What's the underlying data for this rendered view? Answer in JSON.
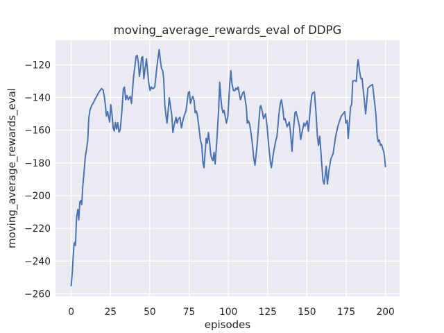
{
  "chart_data": {
    "type": "line",
    "title": "moving_average_rewards_eval of DDPG",
    "xlabel": "episodes",
    "ylabel": "moving_average_rewards_eval",
    "x_ticks": [
      0,
      25,
      50,
      75,
      100,
      125,
      150,
      175,
      200
    ],
    "y_ticks": [
      -120,
      -140,
      -160,
      -180,
      -200,
      -220,
      -240,
      -260
    ],
    "xlim": [
      -10,
      209
    ],
    "ylim": [
      -261.5,
      -105
    ],
    "grid": true,
    "legend": false,
    "background": {
      "figure": "#ffffff",
      "axes": "#eaeaf2"
    },
    "colors": {
      "grid": "#ffffff",
      "line": "#4c72b0",
      "text": "#262626"
    },
    "series": [
      {
        "name": "moving_average_rewards_eval",
        "points": [
          [
            0,
            -255
          ],
          [
            0.7,
            -247
          ],
          [
            1.3,
            -237
          ],
          [
            1.8,
            -229.5
          ],
          [
            2.3,
            -228.5
          ],
          [
            2.7,
            -230.5
          ],
          [
            3.4,
            -213.5
          ],
          [
            4.2,
            -208.5
          ],
          [
            4.8,
            -214.9
          ],
          [
            5.5,
            -204
          ],
          [
            6.1,
            -203
          ],
          [
            6.7,
            -205.5
          ],
          [
            7.4,
            -194
          ],
          [
            8.2,
            -185.5
          ],
          [
            9,
            -176
          ],
          [
            9.8,
            -171.5
          ],
          [
            10.5,
            -166.5
          ],
          [
            11.2,
            -152.5
          ],
          [
            12,
            -147.5
          ],
          [
            13,
            -145
          ],
          [
            14.1,
            -143.2
          ],
          [
            15.1,
            -141.2
          ],
          [
            16.1,
            -139.5
          ],
          [
            17.1,
            -137.6
          ],
          [
            18.1,
            -136.1
          ],
          [
            19.3,
            -134.5
          ],
          [
            20.3,
            -135.4
          ],
          [
            21.1,
            -139.5
          ],
          [
            21.7,
            -144.3
          ],
          [
            22.4,
            -151.4
          ],
          [
            23.1,
            -148.6
          ],
          [
            23.8,
            -151.8
          ],
          [
            24.5,
            -155
          ],
          [
            25.2,
            -144.3
          ],
          [
            26,
            -150.5
          ],
          [
            26.7,
            -158.5
          ],
          [
            27.4,
            -160.5
          ],
          [
            28.1,
            -155.3
          ],
          [
            28.9,
            -159.3
          ],
          [
            29.6,
            -155.4
          ],
          [
            30.4,
            -161.2
          ],
          [
            31.2,
            -159.8
          ],
          [
            32.2,
            -149
          ],
          [
            33.2,
            -134.8
          ],
          [
            33.9,
            -133.6
          ],
          [
            34.7,
            -141.4
          ],
          [
            35.5,
            -138.8
          ],
          [
            36.3,
            -141.4
          ],
          [
            37.5,
            -139.3
          ],
          [
            38.4,
            -143.6
          ],
          [
            39.7,
            -127.1
          ],
          [
            40.6,
            -120.4
          ],
          [
            41.3,
            -114.8
          ],
          [
            42,
            -114.3
          ],
          [
            42.7,
            -118.6
          ],
          [
            43.4,
            -127.1
          ],
          [
            44.2,
            -121.5
          ],
          [
            44.8,
            -115.7
          ],
          [
            45.5,
            -115.1
          ],
          [
            46.2,
            -128.6
          ],
          [
            47.2,
            -121.3
          ],
          [
            47.9,
            -116.4
          ],
          [
            48.7,
            -124.5
          ],
          [
            49.4,
            -131.4
          ],
          [
            50.2,
            -135.7
          ],
          [
            51,
            -133.6
          ],
          [
            51.8,
            -134.6
          ],
          [
            52.5,
            -134.3
          ],
          [
            53.2,
            -133.6
          ],
          [
            54.5,
            -121.4
          ],
          [
            55.2,
            -116.2
          ],
          [
            56,
            -110.7
          ],
          [
            56.7,
            -117.1
          ],
          [
            57.4,
            -122.1
          ],
          [
            58.2,
            -123.6
          ],
          [
            58.9,
            -128.6
          ],
          [
            59.6,
            -145
          ],
          [
            60.3,
            -150.7
          ],
          [
            61,
            -155.7
          ],
          [
            62.4,
            -140.2
          ],
          [
            63.2,
            -145.5
          ],
          [
            64,
            -150.7
          ],
          [
            64.7,
            -161.4
          ],
          [
            65.5,
            -157.1
          ],
          [
            66.7,
            -152.1
          ],
          [
            67.4,
            -155.7
          ],
          [
            68.2,
            -153.2
          ],
          [
            69.2,
            -152.1
          ],
          [
            70.2,
            -158.6
          ],
          [
            70.9,
            -155
          ],
          [
            71.6,
            -152.1
          ],
          [
            73.1,
            -148
          ],
          [
            74.5,
            -137.1
          ],
          [
            75.2,
            -136.4
          ],
          [
            75.9,
            -143.6
          ],
          [
            76.7,
            -141
          ],
          [
            77.4,
            -139.3
          ],
          [
            78.2,
            -142
          ],
          [
            78.9,
            -149.3
          ],
          [
            79.6,
            -148.2
          ],
          [
            80.3,
            -150.7
          ],
          [
            81.3,
            -158.5
          ],
          [
            82.3,
            -166.4
          ],
          [
            83.1,
            -169.3
          ],
          [
            83.8,
            -179.3
          ],
          [
            84.5,
            -182.9
          ],
          [
            85.9,
            -165
          ],
          [
            86.6,
            -167.9
          ],
          [
            87.3,
            -161.4
          ],
          [
            88.2,
            -168.5
          ],
          [
            88.8,
            -175
          ],
          [
            89.5,
            -177.5
          ],
          [
            90.2,
            -178.6
          ],
          [
            90.9,
            -173.6
          ],
          [
            91.6,
            -180.7
          ],
          [
            92.7,
            -166
          ],
          [
            93.8,
            -148
          ],
          [
            94.5,
            -130.7
          ],
          [
            95.2,
            -140.2
          ],
          [
            95.9,
            -146.4
          ],
          [
            96.6,
            -149.3
          ],
          [
            97.3,
            -147.9
          ],
          [
            98.1,
            -152.1
          ],
          [
            98.8,
            -155.7
          ],
          [
            99.7,
            -151.4
          ],
          [
            100.9,
            -131.4
          ],
          [
            101.6,
            -123.6
          ],
          [
            102.3,
            -131.4
          ],
          [
            103.2,
            -135.7
          ],
          [
            104.2,
            -135.8
          ],
          [
            104.8,
            -134.3
          ],
          [
            105.5,
            -135.1
          ],
          [
            106.2,
            -133.6
          ],
          [
            107.7,
            -141.4
          ],
          [
            109.2,
            -137.1
          ],
          [
            109.9,
            -136.4
          ],
          [
            111.4,
            -145.7
          ],
          [
            112.1,
            -155.7
          ],
          [
            112.8,
            -154.3
          ],
          [
            113.6,
            -156.4
          ],
          [
            115,
            -165.7
          ],
          [
            116.2,
            -177.1
          ],
          [
            117,
            -181.4
          ],
          [
            118.2,
            -170
          ],
          [
            119.2,
            -158
          ],
          [
            120.2,
            -145.7
          ],
          [
            120.7,
            -145
          ],
          [
            121.7,
            -149
          ],
          [
            122.4,
            -152.9
          ],
          [
            123.7,
            -150
          ],
          [
            124.7,
            -158
          ],
          [
            125.8,
            -170.7
          ],
          [
            126.7,
            -179
          ],
          [
            127.4,
            -182.9
          ],
          [
            128.7,
            -174
          ],
          [
            130.2,
            -166.5
          ],
          [
            131,
            -163.6
          ],
          [
            132.2,
            -150
          ],
          [
            133.1,
            -143.6
          ],
          [
            133.8,
            -141.4
          ],
          [
            134.7,
            -147
          ],
          [
            135.4,
            -153.6
          ],
          [
            136.1,
            -152.9
          ],
          [
            137.4,
            -157.9
          ],
          [
            138.8,
            -155
          ],
          [
            139.5,
            -160.7
          ],
          [
            140.5,
            -172.9
          ],
          [
            141.4,
            -160
          ],
          [
            142.4,
            -149.3
          ],
          [
            143.1,
            -148.6
          ],
          [
            144.2,
            -153
          ],
          [
            145.3,
            -157.9
          ],
          [
            146,
            -165.7
          ],
          [
            147.2,
            -160
          ],
          [
            148.1,
            -155.7
          ],
          [
            148.8,
            -157.5
          ],
          [
            150.2,
            -154.3
          ],
          [
            151,
            -160.7
          ],
          [
            152.2,
            -146
          ],
          [
            153.1,
            -138.6
          ],
          [
            153.8,
            -137.1
          ],
          [
            154.8,
            -136.6
          ],
          [
            155.7,
            -148
          ],
          [
            156.7,
            -163.6
          ],
          [
            157.4,
            -169.3
          ],
          [
            158.2,
            -163.6
          ],
          [
            159.2,
            -177
          ],
          [
            160.2,
            -190.7
          ],
          [
            161,
            -192.9
          ],
          [
            162.3,
            -182.1
          ],
          [
            163.1,
            -192.9
          ],
          [
            164.1,
            -184
          ],
          [
            165.3,
            -177.5
          ],
          [
            166.7,
            -174.3
          ],
          [
            168.2,
            -164.3
          ],
          [
            169.6,
            -158
          ],
          [
            170.7,
            -154.5
          ],
          [
            171.9,
            -151.4
          ],
          [
            174.1,
            -148.6
          ],
          [
            174.8,
            -155.7
          ],
          [
            175.6,
            -154
          ],
          [
            176.3,
            -165
          ],
          [
            177.8,
            -145.7
          ],
          [
            178.5,
            -144.3
          ],
          [
            179.2,
            -129.9
          ],
          [
            180.7,
            -129.6
          ],
          [
            181.5,
            -130.2
          ],
          [
            182.1,
            -120.5
          ],
          [
            182.6,
            -116.9
          ],
          [
            183.6,
            -124.3
          ],
          [
            184.4,
            -128.6
          ],
          [
            185.1,
            -128.3
          ],
          [
            185.9,
            -135.7
          ],
          [
            187.4,
            -150
          ],
          [
            188.8,
            -134.3
          ],
          [
            190.3,
            -132.9
          ],
          [
            191.8,
            -132.1
          ],
          [
            193.1,
            -143
          ],
          [
            194,
            -151.4
          ],
          [
            194.7,
            -162.9
          ],
          [
            195.4,
            -167.1
          ],
          [
            196.1,
            -166
          ],
          [
            196.8,
            -169.3
          ],
          [
            197.5,
            -168.6
          ],
          [
            198.3,
            -171.4
          ],
          [
            199,
            -173.6
          ],
          [
            199.6,
            -178
          ],
          [
            200,
            -182.3
          ]
        ]
      }
    ]
  }
}
